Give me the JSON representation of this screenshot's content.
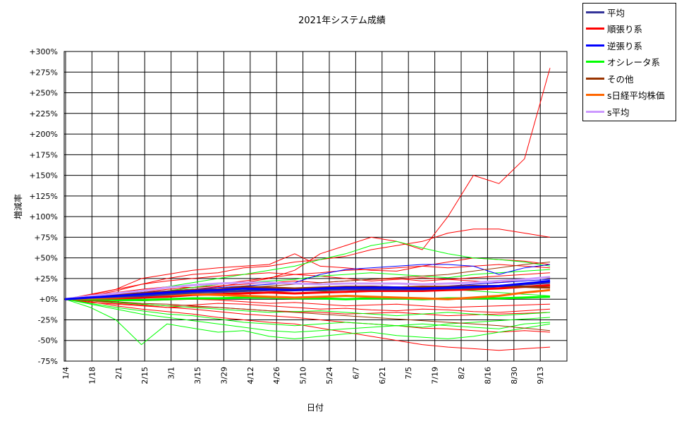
{
  "chart_data": {
    "type": "line",
    "title": "2021年システム成績",
    "xlabel": "日付",
    "ylabel": "増減率",
    "ylim": [
      -75,
      300
    ],
    "y_ticks": [
      -75,
      -50,
      -25,
      0,
      25,
      50,
      75,
      100,
      125,
      150,
      175,
      200,
      225,
      250,
      275,
      300
    ],
    "y_tick_labels": [
      "-75%",
      "-50%",
      "-25%",
      "+0%",
      "+25%",
      "+50%",
      "+75%",
      "+100%",
      "+125%",
      "+150%",
      "+175%",
      "+200%",
      "+225%",
      "+250%",
      "+275%",
      "+300%"
    ],
    "x_tick_labels": [
      "1/4",
      "1/18",
      "2/1",
      "2/15",
      "3/1",
      "3/15",
      "3/29",
      "4/12",
      "4/26",
      "5/10",
      "5/24",
      "6/7",
      "6/21",
      "7/5",
      "7/19",
      "8/2",
      "8/16",
      "8/30",
      "9/13"
    ],
    "grid": true,
    "legend_position": "top-right-outside",
    "legend": [
      {
        "label": "平均",
        "color": "#333399"
      },
      {
        "label": "順張り系",
        "color": "#ff0000"
      },
      {
        "label": "逆張り系",
        "color": "#0000ff"
      },
      {
        "label": "オシレータ系",
        "color": "#00ff00"
      },
      {
        "label": "その他",
        "color": "#993300"
      },
      {
        "label": "s日経平均株価",
        "color": "#ff6600"
      },
      {
        "label": "s平均",
        "color": "#cc99ff"
      }
    ],
    "series": [
      {
        "name": "平均",
        "color": "#333399",
        "values": [
          0,
          2,
          3,
          4,
          6,
          8,
          9,
          10,
          11,
          11,
          11,
          12,
          12,
          12,
          12,
          13,
          14,
          16,
          18,
          20
        ]
      },
      {
        "name": "順張り系",
        "color": "#ff0000",
        "values": [
          0,
          1,
          1,
          2,
          3,
          5,
          6,
          7,
          8,
          7,
          8,
          9,
          10,
          10,
          10,
          11,
          12,
          13,
          15,
          17
        ]
      },
      {
        "name": "逆張り系",
        "color": "#0000ff",
        "values": [
          0,
          2,
          4,
          6,
          8,
          10,
          11,
          13,
          12,
          11,
          13,
          14,
          14,
          14,
          13,
          14,
          15,
          16,
          19,
          22
        ]
      },
      {
        "name": "オシレータ系",
        "color": "#00ff00",
        "values": [
          0,
          0,
          -1,
          -1,
          0,
          1,
          1,
          2,
          2,
          1,
          1,
          0,
          1,
          1,
          0,
          1,
          1,
          1,
          2,
          3
        ]
      },
      {
        "name": "その他",
        "color": "#993300",
        "values": [
          0,
          3,
          5,
          7,
          9,
          11,
          12,
          15,
          14,
          13,
          14,
          15,
          15,
          14,
          15,
          15,
          16,
          16,
          15,
          14
        ]
      },
      {
        "name": "s日経平均株価",
        "color": "#ff6600",
        "values": [
          0,
          1,
          2,
          4,
          5,
          6,
          5,
          4,
          3,
          2,
          3,
          4,
          3,
          2,
          1,
          0,
          2,
          4,
          8,
          11
        ]
      },
      {
        "name": "s平均",
        "color": "#cc99ff",
        "values": [
          0,
          4,
          7,
          10,
          14,
          17,
          19,
          20,
          20,
          19,
          18,
          19,
          19,
          19,
          18,
          19,
          20,
          22,
          24,
          27
        ]
      }
    ],
    "individual_series": [
      {
        "color": "#ff0000",
        "values": [
          0,
          3,
          6,
          8,
          10,
          12,
          15,
          20,
          25,
          35,
          55,
          65,
          75,
          70,
          60,
          100,
          150,
          140,
          170,
          280
        ]
      },
      {
        "color": "#ff0000",
        "values": [
          0,
          4,
          10,
          18,
          25,
          30,
          32,
          38,
          40,
          45,
          48,
          52,
          60,
          65,
          70,
          80,
          85,
          85,
          80,
          75
        ]
      },
      {
        "color": "#ff0000",
        "values": [
          0,
          5,
          12,
          25,
          30,
          35,
          38,
          40,
          42,
          55,
          40,
          38,
          35,
          34,
          40,
          45,
          50,
          48,
          46,
          42
        ]
      },
      {
        "color": "#ff0000",
        "values": [
          0,
          -3,
          -8,
          -12,
          -15,
          -18,
          -22,
          -25,
          -28,
          -30,
          -35,
          -40,
          -45,
          -50,
          -55,
          -58,
          -60,
          -62,
          -60,
          -58
        ]
      },
      {
        "color": "#ff0000",
        "values": [
          0,
          -2,
          -5,
          -7,
          -10,
          -12,
          -15,
          -18,
          -20,
          -22,
          -25,
          -28,
          -30,
          -32,
          -35,
          -36,
          -38,
          -40,
          -38,
          -40
        ]
      },
      {
        "color": "#ff0000",
        "values": [
          0,
          6,
          12,
          18,
          22,
          25,
          28,
          30,
          32,
          30,
          32,
          35,
          36,
          38,
          40,
          38,
          40,
          42,
          40,
          38
        ]
      },
      {
        "color": "#ff0000",
        "values": [
          0,
          2,
          4,
          8,
          12,
          14,
          16,
          18,
          20,
          22,
          20,
          22,
          24,
          25,
          22,
          24,
          26,
          28,
          30,
          32
        ]
      },
      {
        "color": "#ff0000",
        "values": [
          0,
          -4,
          -6,
          -8,
          -10,
          -9,
          -10,
          -12,
          -14,
          -15,
          -16,
          -18,
          -17,
          -16,
          -18,
          -20,
          -19,
          -18,
          -17,
          -16
        ]
      },
      {
        "color": "#ff0000",
        "values": [
          0,
          1,
          0,
          -2,
          -1,
          0,
          -1,
          -3,
          -5,
          -4,
          -6,
          -8,
          -7,
          -6,
          -8,
          -10,
          -9,
          -8,
          -7,
          -6
        ]
      },
      {
        "color": "#ff0000",
        "values": [
          0,
          5,
          8,
          12,
          15,
          14,
          18,
          22,
          26,
          30,
          28,
          25,
          22,
          24,
          26,
          24,
          22,
          20,
          24,
          26
        ]
      },
      {
        "color": "#ff0000",
        "values": [
          0,
          -1,
          -3,
          -6,
          -8,
          -7,
          -5,
          -6,
          -8,
          -10,
          -12,
          -11,
          -13,
          -14,
          -12,
          -13,
          -15,
          -16,
          -14,
          -12
        ]
      },
      {
        "color": "#00ff00",
        "values": [
          0,
          -10,
          -25,
          -55,
          -30,
          -35,
          -40,
          -38,
          -45,
          -48,
          -45,
          -42,
          -40,
          -44,
          -46,
          -48,
          -45,
          -40,
          -35,
          -30
        ]
      },
      {
        "color": "#00ff00",
        "values": [
          0,
          2,
          6,
          10,
          15,
          20,
          25,
          30,
          35,
          40,
          48,
          55,
          65,
          70,
          62,
          55,
          50,
          48,
          45,
          40
        ]
      },
      {
        "color": "#00ff00",
        "values": [
          0,
          -5,
          -10,
          -14,
          -18,
          -20,
          -24,
          -28,
          -30,
          -32,
          -30,
          -28,
          -30,
          -32,
          -34,
          -30,
          -28,
          -26,
          -24,
          -22
        ]
      },
      {
        "color": "#00ff00",
        "values": [
          0,
          3,
          6,
          8,
          10,
          14,
          18,
          20,
          22,
          24,
          28,
          30,
          32,
          30,
          28,
          26,
          30,
          32,
          34,
          36
        ]
      },
      {
        "color": "#00ff00",
        "values": [
          0,
          -2,
          -4,
          -6,
          -8,
          -10,
          -12,
          -14,
          -16,
          -15,
          -14,
          -16,
          -18,
          -20,
          -18,
          -16,
          -18,
          -20,
          -18,
          -16
        ]
      },
      {
        "color": "#00ff00",
        "values": [
          0,
          1,
          2,
          4,
          6,
          8,
          10,
          12,
          14,
          12,
          10,
          8,
          10,
          12,
          14,
          12,
          10,
          8,
          6,
          4
        ]
      },
      {
        "color": "#00ff00",
        "values": [
          0,
          -6,
          -12,
          -18,
          -22,
          -26,
          -30,
          -34,
          -38,
          -40,
          -38,
          -36,
          -34,
          -32,
          -30,
          -32,
          -34,
          -36,
          -30,
          -28
        ]
      },
      {
        "color": "#0000ff",
        "values": [
          0,
          3,
          6,
          8,
          10,
          12,
          14,
          16,
          18,
          20,
          30,
          36,
          38,
          40,
          42,
          42,
          40,
          30,
          38,
          42
        ]
      },
      {
        "color": "#0000ff",
        "values": [
          0,
          2,
          4,
          6,
          8,
          10,
          9,
          11,
          12,
          13,
          14,
          15,
          16,
          15,
          14,
          16,
          18,
          20,
          22,
          24
        ]
      },
      {
        "color": "#993300",
        "values": [
          0,
          2,
          4,
          6,
          8,
          10,
          12,
          14,
          16,
          18,
          20,
          22,
          24,
          26,
          28,
          30,
          34,
          38,
          42,
          45
        ]
      },
      {
        "color": "#993300",
        "values": [
          0,
          -2,
          -3,
          -5,
          -6,
          -8,
          -10,
          -12,
          -14,
          -16,
          -18,
          -20,
          -22,
          -24,
          -26,
          -28,
          -30,
          -32,
          -35,
          -38
        ]
      },
      {
        "color": "#993300",
        "values": [
          0,
          1,
          3,
          4,
          5,
          6,
          7,
          8,
          9,
          10,
          11,
          12,
          13,
          12,
          11,
          12,
          13,
          14,
          15,
          16
        ]
      }
    ]
  }
}
